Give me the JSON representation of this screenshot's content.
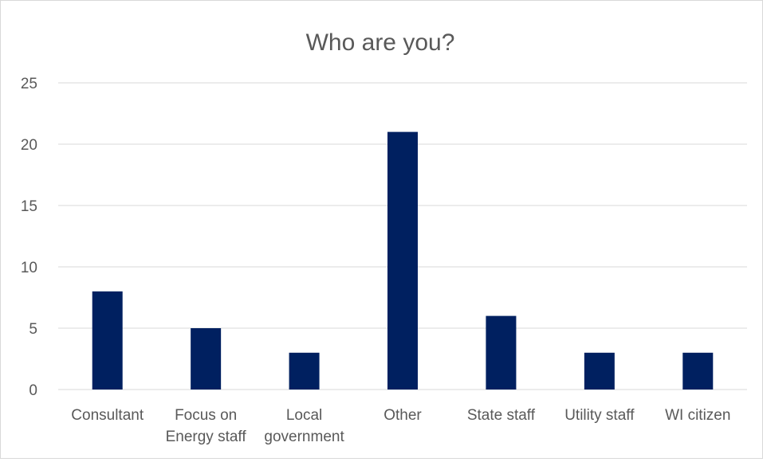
{
  "chart_data": {
    "type": "bar",
    "title": "Who are you?",
    "xlabel": "",
    "ylabel": "",
    "categories": [
      [
        "Consultant"
      ],
      [
        "Focus on",
        "Energy staff"
      ],
      [
        "Local",
        "government"
      ],
      [
        "Other"
      ],
      [
        "State staff"
      ],
      [
        "Utility staff"
      ],
      [
        "WI citizen"
      ]
    ],
    "values": [
      8,
      5,
      3,
      21,
      6,
      3,
      3
    ],
    "ylim": [
      0,
      25
    ],
    "yticks": [
      "0",
      "5",
      "10",
      "15",
      "20",
      "25"
    ],
    "grid": true,
    "legend": "none",
    "colors": {
      "bar": "#002060",
      "grid": "#d9d9d9",
      "text": "#595959",
      "border": "#d9d9d9"
    }
  }
}
